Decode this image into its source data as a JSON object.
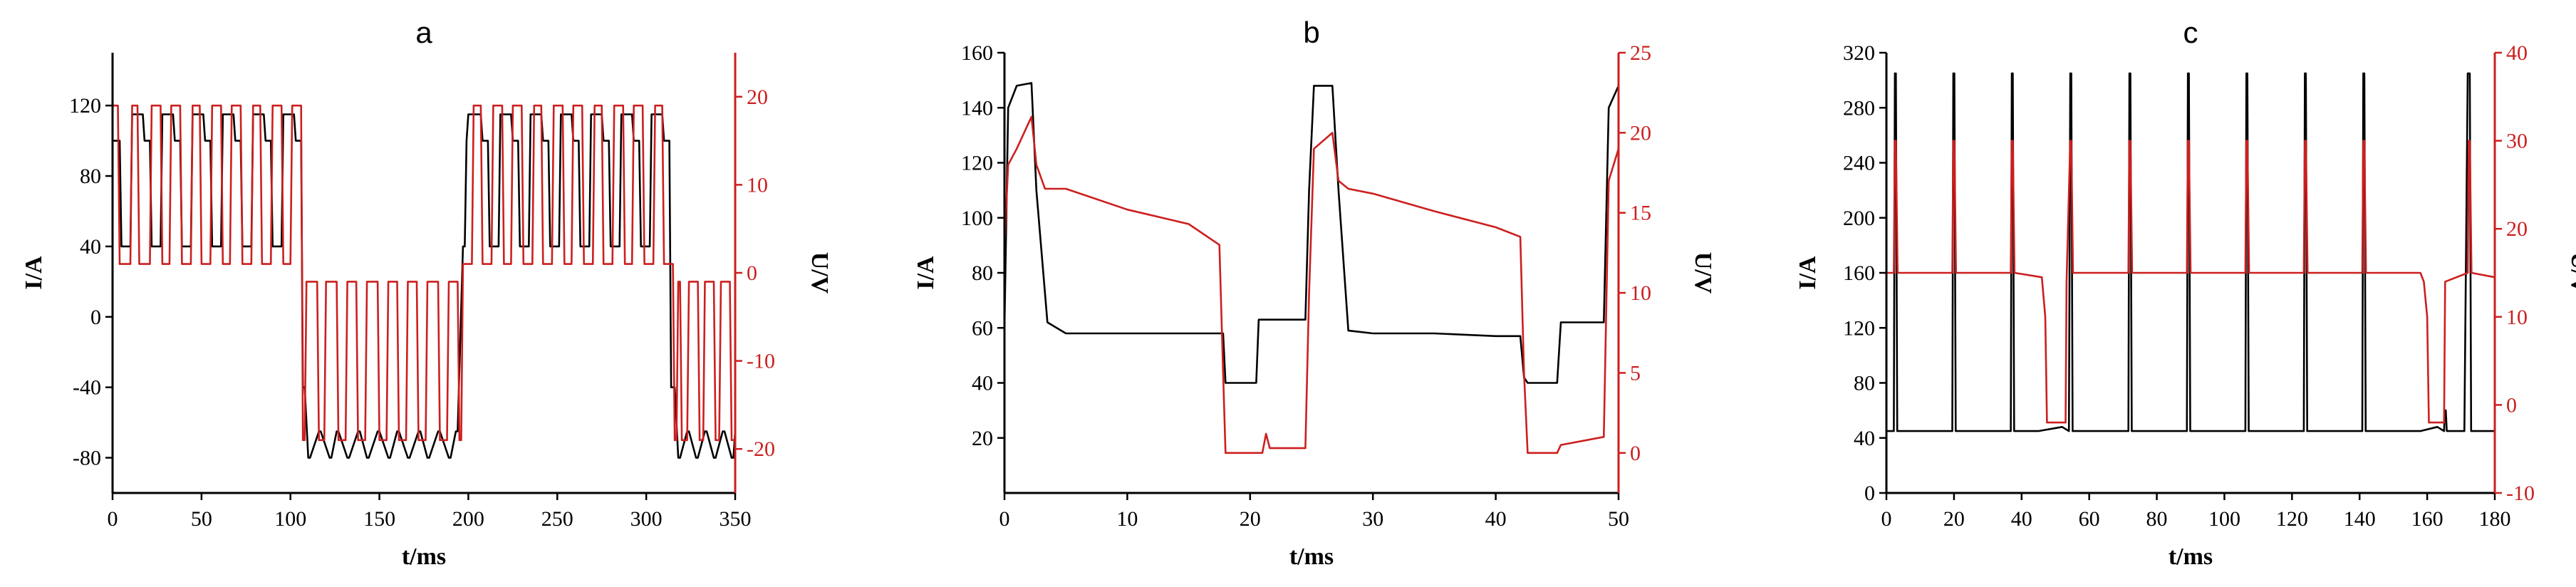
{
  "colors": {
    "current": "#000000",
    "voltage": "#cc1f1f",
    "axis": "#000000"
  },
  "chart_data": [
    {
      "type": "line",
      "title": "a",
      "xlabel": "t/ms",
      "ylabel_left": "I/A",
      "ylabel_right": "U/V",
      "xlim": [
        0,
        350
      ],
      "ylim_left": [
        -100,
        150
      ],
      "ylim_right": [
        -25,
        25
      ],
      "x_ticks": [
        0,
        50,
        100,
        150,
        200,
        250,
        300,
        350
      ],
      "y_left_ticks": [
        -80,
        -40,
        0,
        40,
        80,
        120
      ],
      "y_right_ticks": [
        -20,
        -10,
        0,
        10,
        20
      ],
      "grid": false,
      "series": [
        {
          "axis": "left",
          "color": "#000000",
          "x": [
            0,
            4,
            5,
            10,
            11,
            17,
            18,
            21,
            22,
            27,
            28,
            34,
            35,
            38,
            39,
            44,
            45,
            51,
            52,
            55,
            56,
            61,
            62,
            68,
            69,
            72,
            73,
            78,
            79,
            85,
            86,
            89,
            90,
            95,
            96,
            102,
            103,
            106,
            107,
            108,
            110,
            111,
            116,
            117,
            122,
            123,
            126,
            127,
            132,
            133,
            138,
            139,
            143,
            144,
            149,
            150,
            155,
            156,
            160,
            161,
            166,
            167,
            172,
            173,
            177,
            178,
            183,
            184,
            189,
            190,
            193,
            194,
            197,
            198,
            199,
            200,
            207,
            208,
            211,
            212,
            217,
            218,
            224,
            225,
            228,
            229,
            234,
            235,
            241,
            242,
            245,
            246,
            251,
            252,
            258,
            259,
            262,
            263,
            268,
            269,
            275,
            276,
            279,
            280,
            285,
            286,
            292,
            293,
            296,
            297,
            302,
            303,
            309,
            310,
            313,
            314,
            316,
            318,
            319,
            323,
            324,
            328,
            329,
            333,
            334,
            338,
            339,
            343,
            344,
            348,
            349,
            350
          ],
          "y": [
            100,
            100,
            40,
            40,
            115,
            115,
            100,
            100,
            40,
            40,
            115,
            115,
            100,
            100,
            40,
            40,
            115,
            115,
            100,
            100,
            40,
            40,
            115,
            115,
            100,
            100,
            40,
            40,
            115,
            115,
            100,
            100,
            40,
            40,
            115,
            115,
            100,
            100,
            -40,
            -40,
            -80,
            -80,
            -65,
            -65,
            -80,
            -80,
            -65,
            -65,
            -80,
            -80,
            -65,
            -65,
            -80,
            -80,
            -65,
            -65,
            -80,
            -80,
            -65,
            -65,
            -80,
            -80,
            -65,
            -65,
            -80,
            -80,
            -65,
            -65,
            -80,
            -80,
            -65,
            -65,
            40,
            40,
            100,
            115,
            115,
            100,
            100,
            40,
            40,
            115,
            115,
            100,
            100,
            40,
            40,
            115,
            115,
            100,
            100,
            40,
            40,
            115,
            115,
            100,
            100,
            40,
            40,
            115,
            115,
            100,
            100,
            40,
            40,
            115,
            115,
            100,
            100,
            40,
            40,
            115,
            115,
            100,
            100,
            -40,
            -40,
            -80,
            -80,
            -65,
            -65,
            -80,
            -80,
            -65,
            -65,
            -80,
            -80,
            -65,
            -65,
            -80,
            -80,
            -65
          ]
        },
        {
          "axis": "right",
          "color": "#cc1f1f",
          "x": [
            0,
            3,
            4,
            10,
            11,
            14,
            15,
            21,
            22,
            27,
            28,
            32,
            33,
            38,
            39,
            44,
            45,
            49,
            50,
            55,
            56,
            61,
            62,
            66,
            67,
            72,
            73,
            78,
            79,
            83,
            84,
            89,
            90,
            95,
            96,
            100,
            101,
            106,
            107,
            108,
            109,
            115,
            116,
            119,
            120,
            126,
            127,
            131,
            132,
            137,
            138,
            142,
            143,
            149,
            150,
            154,
            155,
            160,
            161,
            165,
            166,
            171,
            172,
            176,
            177,
            183,
            184,
            188,
            189,
            194,
            195,
            196,
            197,
            202,
            203,
            207,
            208,
            213,
            214,
            219,
            220,
            224,
            225,
            230,
            231,
            236,
            237,
            241,
            242,
            247,
            248,
            253,
            254,
            258,
            259,
            264,
            265,
            270,
            271,
            275,
            276,
            281,
            282,
            287,
            288,
            292,
            293,
            298,
            299,
            304,
            305,
            309,
            310,
            315,
            316,
            317,
            318,
            319,
            320,
            323,
            324,
            329,
            330,
            332,
            333,
            338,
            339,
            341,
            342,
            347,
            348,
            350
          ],
          "y": [
            19,
            19,
            1,
            1,
            19,
            19,
            1,
            1,
            19,
            19,
            1,
            1,
            19,
            19,
            1,
            1,
            19,
            19,
            1,
            1,
            19,
            19,
            1,
            1,
            19,
            19,
            1,
            1,
            19,
            19,
            1,
            1,
            19,
            19,
            1,
            1,
            19,
            19,
            -19,
            -19,
            -1,
            -1,
            -19,
            -19,
            -1,
            -1,
            -19,
            -19,
            -1,
            -1,
            -19,
            -19,
            -1,
            -1,
            -19,
            -19,
            -1,
            -1,
            -19,
            -19,
            -1,
            -1,
            -19,
            -19,
            -1,
            -1,
            -19,
            -19,
            -1,
            -1,
            -19,
            -19,
            1,
            1,
            19,
            19,
            1,
            1,
            19,
            19,
            1,
            1,
            19,
            19,
            1,
            1,
            19,
            19,
            1,
            1,
            19,
            19,
            1,
            1,
            19,
            19,
            1,
            1,
            19,
            19,
            1,
            1,
            19,
            19,
            1,
            1,
            19,
            19,
            1,
            1,
            19,
            19,
            1,
            1,
            -19,
            -19,
            -1,
            -1,
            -19,
            -19,
            -1,
            -1,
            -19,
            -19,
            -1,
            -1,
            -19,
            -19,
            -1,
            -1,
            -19,
            -19
          ]
        }
      ]
    },
    {
      "type": "line",
      "title": "b",
      "xlabel": "t/ms",
      "ylabel_left": "I/A",
      "ylabel_right": "U/V",
      "xlim": [
        0,
        50
      ],
      "ylim_left": [
        0,
        160
      ],
      "ylim_right": [
        -2.5,
        25
      ],
      "x_ticks": [
        0,
        10,
        20,
        30,
        40,
        50
      ],
      "y_left_ticks": [
        20,
        40,
        60,
        80,
        100,
        120,
        140,
        160
      ],
      "y_right_ticks": [
        0,
        5,
        10,
        15,
        20,
        25
      ],
      "grid": false,
      "series": [
        {
          "axis": "left",
          "color": "#000000",
          "x": [
            0,
            0.3,
            1,
            2.2,
            2.6,
            3.5,
            5,
            10,
            15,
            17.5,
            17.8,
            18,
            20.5,
            20.7,
            24.5,
            24.8,
            25.2,
            26.7,
            27.2,
            28,
            30,
            35,
            40,
            42,
            42.3,
            42.6,
            45,
            45.3,
            48.8,
            49.2,
            50
          ],
          "y": [
            60,
            140,
            148,
            149,
            110,
            62,
            58,
            58,
            58,
            58,
            58,
            40,
            40,
            63,
            63,
            110,
            148,
            148,
            110,
            59,
            58,
            58,
            57,
            57,
            42,
            40,
            40,
            62,
            62,
            140,
            148
          ]
        },
        {
          "axis": "right",
          "color": "#cc1f1f",
          "x": [
            0,
            0.3,
            1,
            2.2,
            2.6,
            3.3,
            5,
            10,
            15,
            17.5,
            17.8,
            18,
            21,
            21.3,
            21.6,
            24.5,
            24.8,
            25.2,
            26.7,
            27.2,
            28,
            30,
            35,
            40,
            42,
            42.3,
            42.6,
            45,
            45.3,
            48.8,
            49.2,
            50
          ],
          "y": [
            13,
            18,
            19,
            21,
            18,
            16.5,
            16.5,
            15.2,
            14.3,
            13,
            5,
            0,
            0,
            1.2,
            0.3,
            0.3,
            10,
            19,
            20,
            17,
            16.5,
            16.2,
            15.1,
            14.1,
            13.5,
            5,
            0,
            0,
            0.5,
            1,
            17,
            19
          ]
        }
      ]
    },
    {
      "type": "line",
      "title": "c",
      "xlabel": "t/ms",
      "ylabel_left": "I/A",
      "ylabel_right": "U/V",
      "xlim": [
        0,
        180
      ],
      "ylim_left": [
        0,
        320
      ],
      "ylim_right": [
        -10,
        40
      ],
      "x_ticks": [
        0,
        20,
        40,
        60,
        80,
        100,
        120,
        140,
        160,
        180
      ],
      "y_left_ticks": [
        0,
        40,
        80,
        120,
        160,
        200,
        240,
        280,
        320
      ],
      "y_right_ticks": [
        -10,
        0,
        10,
        20,
        30,
        40
      ],
      "grid": false,
      "series": [
        {
          "axis": "left",
          "color": "#000000",
          "x": [
            0,
            2.2,
            2.5,
            2.8,
            3.2,
            19.5,
            19.8,
            20.1,
            20.5,
            36.8,
            37.1,
            37.4,
            37.8,
            45,
            52,
            54,
            54.4,
            54.7,
            55.1,
            71.6,
            71.9,
            72.2,
            72.6,
            88.9,
            89.2,
            89.5,
            89.9,
            106.2,
            106.5,
            106.8,
            107.2,
            123.5,
            123.8,
            124.1,
            124.5,
            140.8,
            141.1,
            141.4,
            141.8,
            158,
            163,
            165,
            165.2,
            165.5,
            165.8,
            171,
            172,
            172.3,
            172.6,
            173,
            180
          ],
          "y": [
            45,
            45,
            305,
            305,
            45,
            45,
            305,
            305,
            45,
            45,
            305,
            305,
            45,
            45,
            48,
            45,
            305,
            305,
            45,
            45,
            305,
            305,
            45,
            45,
            305,
            305,
            45,
            45,
            305,
            305,
            45,
            45,
            305,
            305,
            45,
            45,
            305,
            305,
            45,
            45,
            48,
            45,
            60,
            60,
            45,
            45,
            305,
            305,
            305,
            45,
            45
          ]
        },
        {
          "axis": "right",
          "color": "#cc1f1f",
          "x": [
            0,
            2.2,
            2.5,
            2.8,
            3.3,
            19.5,
            19.8,
            20.1,
            20.6,
            36.8,
            37.1,
            37.4,
            37.9,
            46,
            47,
            47.5,
            53,
            53.3,
            54.4,
            54.7,
            55.2,
            71.6,
            71.9,
            72.2,
            72.7,
            88.9,
            89.2,
            89.5,
            90,
            106.2,
            106.5,
            106.8,
            107.3,
            123.5,
            123.8,
            124.1,
            124.6,
            140.8,
            141.1,
            141.4,
            141.9,
            158,
            159,
            160,
            160.5,
            165,
            165.3,
            172,
            172.3,
            172.6,
            173.1,
            180
          ],
          "y": [
            15,
            15,
            30,
            30,
            15,
            15,
            30,
            30,
            15,
            15,
            30,
            30,
            15,
            14.5,
            10,
            -2,
            -2,
            14,
            30,
            30,
            15,
            15,
            30,
            30,
            15,
            15,
            30,
            30,
            15,
            15,
            30,
            30,
            15,
            15,
            30,
            30,
            15,
            15,
            30,
            30,
            15,
            15,
            14,
            10,
            -2,
            -2,
            14,
            15,
            30,
            30,
            15,
            14.5
          ]
        }
      ]
    }
  ]
}
